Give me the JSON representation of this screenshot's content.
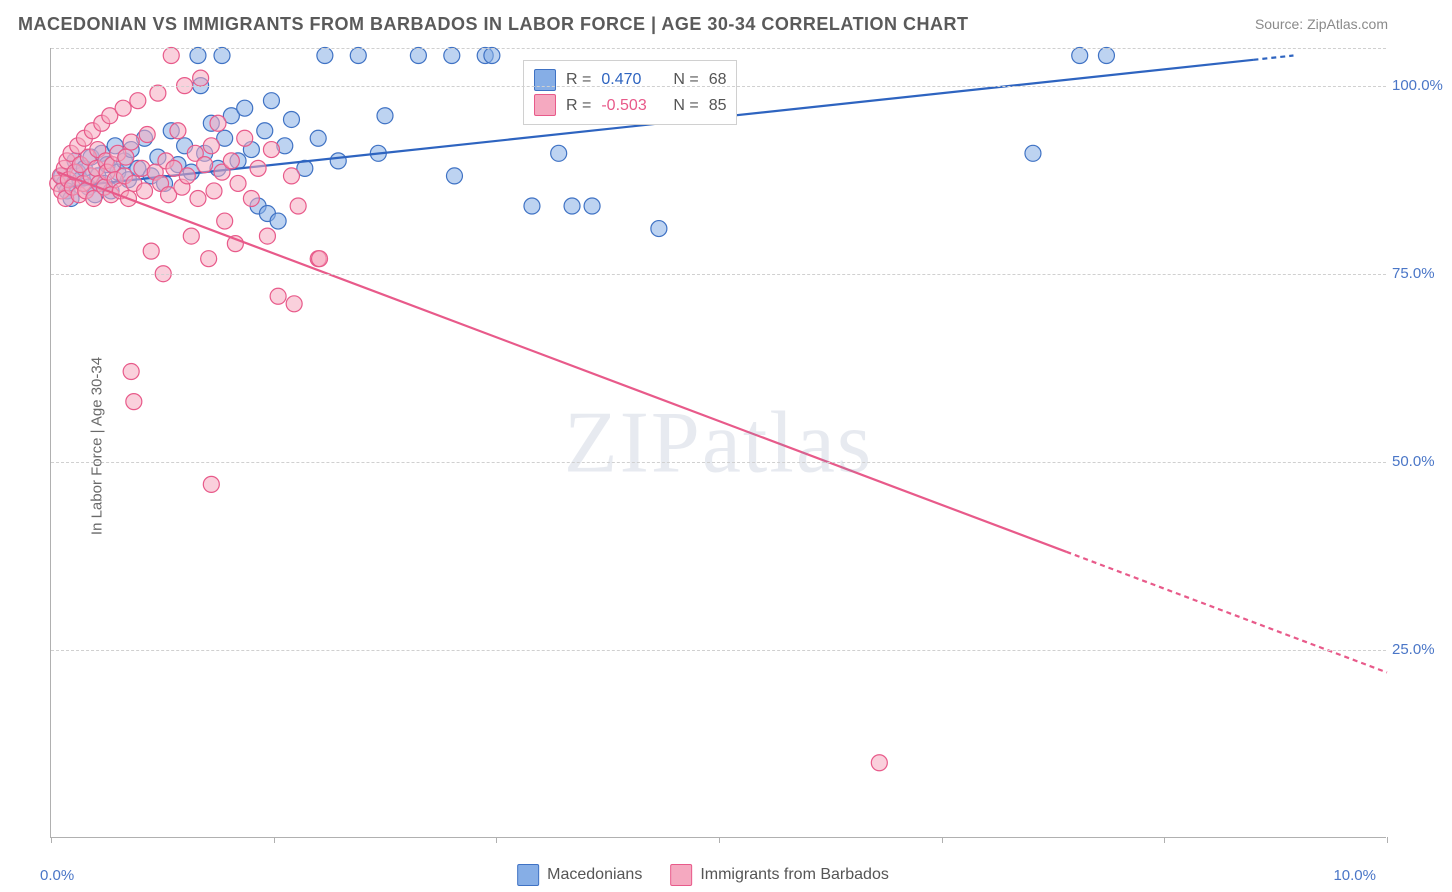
{
  "title": "MACEDONIAN VS IMMIGRANTS FROM BARBADOS IN LABOR FORCE | AGE 30-34 CORRELATION CHART",
  "source": "Source: ZipAtlas.com",
  "ylabel": "In Labor Force | Age 30-34",
  "watermark": "ZIPatlas",
  "x_axis": {
    "min": 0.0,
    "max": 10.0,
    "label_left": "0.0%",
    "label_right": "10.0%",
    "ticks_at": [
      0,
      1.67,
      3.33,
      5.0,
      6.67,
      8.33,
      10.0
    ]
  },
  "y_axis": {
    "min": 0.0,
    "max": 105.0,
    "ticks": [
      {
        "v": 25.0,
        "label": "25.0%"
      },
      {
        "v": 50.0,
        "label": "50.0%"
      },
      {
        "v": 75.0,
        "label": "75.0%"
      },
      {
        "v": 100.0,
        "label": "100.0%"
      },
      {
        "v": 105.0,
        "label": ""
      }
    ]
  },
  "series": [
    {
      "name": "Macedonians",
      "type": "scatter",
      "marker": "circle",
      "marker_radius": 8,
      "fill": "#86aee6",
      "fill_opacity": 0.55,
      "stroke": "#3f72c4",
      "stroke_width": 1.2,
      "trend": {
        "x1": 0.1,
        "y1": 86.5,
        "x2": 9.3,
        "y2": 104.0,
        "solid_until_x": 9.0,
        "color": "#2e64c0",
        "width": 2.2
      },
      "stats": {
        "R": "0.470",
        "N": "68"
      },
      "points": [
        [
          0.08,
          88.0
        ],
        [
          0.1,
          87.0
        ],
        [
          0.12,
          86.0
        ],
        [
          0.15,
          85.0
        ],
        [
          0.18,
          90.0
        ],
        [
          0.2,
          88.5
        ],
        [
          0.22,
          87.5
        ],
        [
          0.25,
          89.0
        ],
        [
          0.28,
          86.5
        ],
        [
          0.3,
          90.5
        ],
        [
          0.33,
          85.5
        ],
        [
          0.35,
          88.0
        ],
        [
          0.38,
          91.0
        ],
        [
          0.4,
          87.0
        ],
        [
          0.42,
          89.5
        ],
        [
          0.45,
          86.0
        ],
        [
          0.48,
          92.0
        ],
        [
          0.5,
          88.5
        ],
        [
          0.55,
          90.0
        ],
        [
          0.58,
          87.5
        ],
        [
          0.6,
          91.5
        ],
        [
          0.65,
          89.0
        ],
        [
          0.7,
          93.0
        ],
        [
          0.75,
          88.0
        ],
        [
          0.8,
          90.5
        ],
        [
          0.85,
          87.0
        ],
        [
          0.9,
          94.0
        ],
        [
          0.95,
          89.5
        ],
        [
          1.0,
          92.0
        ],
        [
          1.05,
          88.5
        ],
        [
          1.1,
          104.0
        ],
        [
          1.12,
          100.0
        ],
        [
          1.15,
          91.0
        ],
        [
          1.2,
          95.0
        ],
        [
          1.25,
          89.0
        ],
        [
          1.28,
          104.0
        ],
        [
          1.3,
          93.0
        ],
        [
          1.35,
          96.0
        ],
        [
          1.4,
          90.0
        ],
        [
          1.45,
          97.0
        ],
        [
          1.5,
          91.5
        ],
        [
          1.55,
          84.0
        ],
        [
          1.6,
          94.0
        ],
        [
          1.62,
          83.0
        ],
        [
          1.65,
          98.0
        ],
        [
          1.7,
          82.0
        ],
        [
          1.75,
          92.0
        ],
        [
          1.8,
          95.5
        ],
        [
          1.9,
          89.0
        ],
        [
          2.0,
          93.0
        ],
        [
          2.05,
          104.0
        ],
        [
          2.15,
          90.0
        ],
        [
          2.3,
          104.0
        ],
        [
          2.45,
          91.0
        ],
        [
          2.5,
          96.0
        ],
        [
          2.75,
          104.0
        ],
        [
          3.0,
          104.0
        ],
        [
          3.02,
          88.0
        ],
        [
          3.25,
          104.0
        ],
        [
          3.3,
          104.0
        ],
        [
          3.6,
          84.0
        ],
        [
          3.8,
          91.0
        ],
        [
          3.9,
          84.0
        ],
        [
          4.05,
          84.0
        ],
        [
          4.55,
          81.0
        ],
        [
          7.35,
          91.0
        ],
        [
          7.7,
          104.0
        ],
        [
          7.9,
          104.0
        ]
      ]
    },
    {
      "name": "Immigrants from Barbados",
      "type": "scatter",
      "marker": "circle",
      "marker_radius": 8,
      "fill": "#f5a9c0",
      "fill_opacity": 0.55,
      "stroke": "#e85a8a",
      "stroke_width": 1.2,
      "trend": {
        "x1": 0.05,
        "y1": 88.5,
        "x2": 10.0,
        "y2": 22.0,
        "solid_until_x": 7.6,
        "color": "#e85a8a",
        "width": 2.2
      },
      "stats": {
        "R": "-0.503",
        "N": "85"
      },
      "points": [
        [
          0.05,
          87.0
        ],
        [
          0.07,
          88.0
        ],
        [
          0.08,
          86.0
        ],
        [
          0.1,
          89.0
        ],
        [
          0.11,
          85.0
        ],
        [
          0.12,
          90.0
        ],
        [
          0.13,
          87.5
        ],
        [
          0.15,
          91.0
        ],
        [
          0.16,
          86.5
        ],
        [
          0.18,
          88.5
        ],
        [
          0.2,
          92.0
        ],
        [
          0.21,
          85.5
        ],
        [
          0.22,
          89.5
        ],
        [
          0.24,
          87.0
        ],
        [
          0.25,
          93.0
        ],
        [
          0.26,
          86.0
        ],
        [
          0.28,
          90.5
        ],
        [
          0.3,
          88.0
        ],
        [
          0.31,
          94.0
        ],
        [
          0.32,
          85.0
        ],
        [
          0.34,
          89.0
        ],
        [
          0.35,
          91.5
        ],
        [
          0.36,
          87.0
        ],
        [
          0.38,
          95.0
        ],
        [
          0.4,
          86.5
        ],
        [
          0.41,
          90.0
        ],
        [
          0.42,
          88.5
        ],
        [
          0.44,
          96.0
        ],
        [
          0.45,
          85.5
        ],
        [
          0.46,
          89.5
        ],
        [
          0.48,
          87.5
        ],
        [
          0.5,
          91.0
        ],
        [
          0.52,
          86.0
        ],
        [
          0.54,
          97.0
        ],
        [
          0.55,
          88.0
        ],
        [
          0.56,
          90.5
        ],
        [
          0.58,
          85.0
        ],
        [
          0.6,
          92.5
        ],
        [
          0.62,
          87.0
        ],
        [
          0.65,
          98.0
        ],
        [
          0.68,
          89.0
        ],
        [
          0.7,
          86.0
        ],
        [
          0.72,
          93.5
        ],
        [
          0.75,
          78.0
        ],
        [
          0.78,
          88.5
        ],
        [
          0.8,
          99.0
        ],
        [
          0.82,
          87.0
        ],
        [
          0.84,
          75.0
        ],
        [
          0.86,
          90.0
        ],
        [
          0.88,
          85.5
        ],
        [
          0.9,
          104.0
        ],
        [
          0.92,
          89.0
        ],
        [
          0.95,
          94.0
        ],
        [
          0.98,
          86.5
        ],
        [
          1.0,
          100.0
        ],
        [
          1.02,
          88.0
        ],
        [
          1.05,
          80.0
        ],
        [
          1.08,
          91.0
        ],
        [
          1.1,
          85.0
        ],
        [
          1.12,
          101.0
        ],
        [
          1.15,
          89.5
        ],
        [
          1.18,
          77.0
        ],
        [
          1.2,
          92.0
        ],
        [
          1.22,
          86.0
        ],
        [
          1.25,
          95.0
        ],
        [
          1.28,
          88.5
        ],
        [
          1.3,
          82.0
        ],
        [
          1.35,
          90.0
        ],
        [
          1.38,
          79.0
        ],
        [
          1.4,
          87.0
        ],
        [
          1.45,
          93.0
        ],
        [
          1.5,
          85.0
        ],
        [
          1.55,
          89.0
        ],
        [
          1.62,
          80.0
        ],
        [
          1.65,
          91.5
        ],
        [
          1.7,
          72.0
        ],
        [
          1.8,
          88.0
        ],
        [
          1.82,
          71.0
        ],
        [
          1.85,
          84.0
        ],
        [
          2.0,
          77.0
        ],
        [
          2.01,
          77.0
        ],
        [
          0.6,
          62.0
        ],
        [
          0.62,
          58.0
        ],
        [
          1.2,
          47.0
        ],
        [
          6.2,
          10.0
        ]
      ]
    }
  ],
  "legend": {
    "items": [
      {
        "label": "Macedonians",
        "fill": "#86aee6",
        "stroke": "#3f72c4"
      },
      {
        "label": "Immigrants from Barbados",
        "fill": "#f5a9c0",
        "stroke": "#e85a8a"
      }
    ]
  },
  "stats_box": {
    "rows": [
      {
        "sq_fill": "#86aee6",
        "sq_stroke": "#3f72c4",
        "r_label": "R =",
        "r_value": "0.470",
        "n_label": "N =",
        "n_value": "68",
        "r_color": "#2e64c0"
      },
      {
        "sq_fill": "#f5a9c0",
        "sq_stroke": "#e85a8a",
        "r_label": "R =",
        "r_value": "-0.503",
        "n_label": "N =",
        "n_value": "85",
        "r_color": "#e85a8a"
      }
    ]
  },
  "plot_styling": {
    "background_color": "#ffffff",
    "grid_dash": "4,3",
    "grid_color": "#d0d0d0",
    "axis_color": "#b0b0b0",
    "title_color": "#5a5a5a",
    "tick_label_color": "#4a76c7",
    "title_fontsize": 18,
    "label_fontsize": 15,
    "tick_fontsize": 15,
    "legend_fontsize": 16
  }
}
